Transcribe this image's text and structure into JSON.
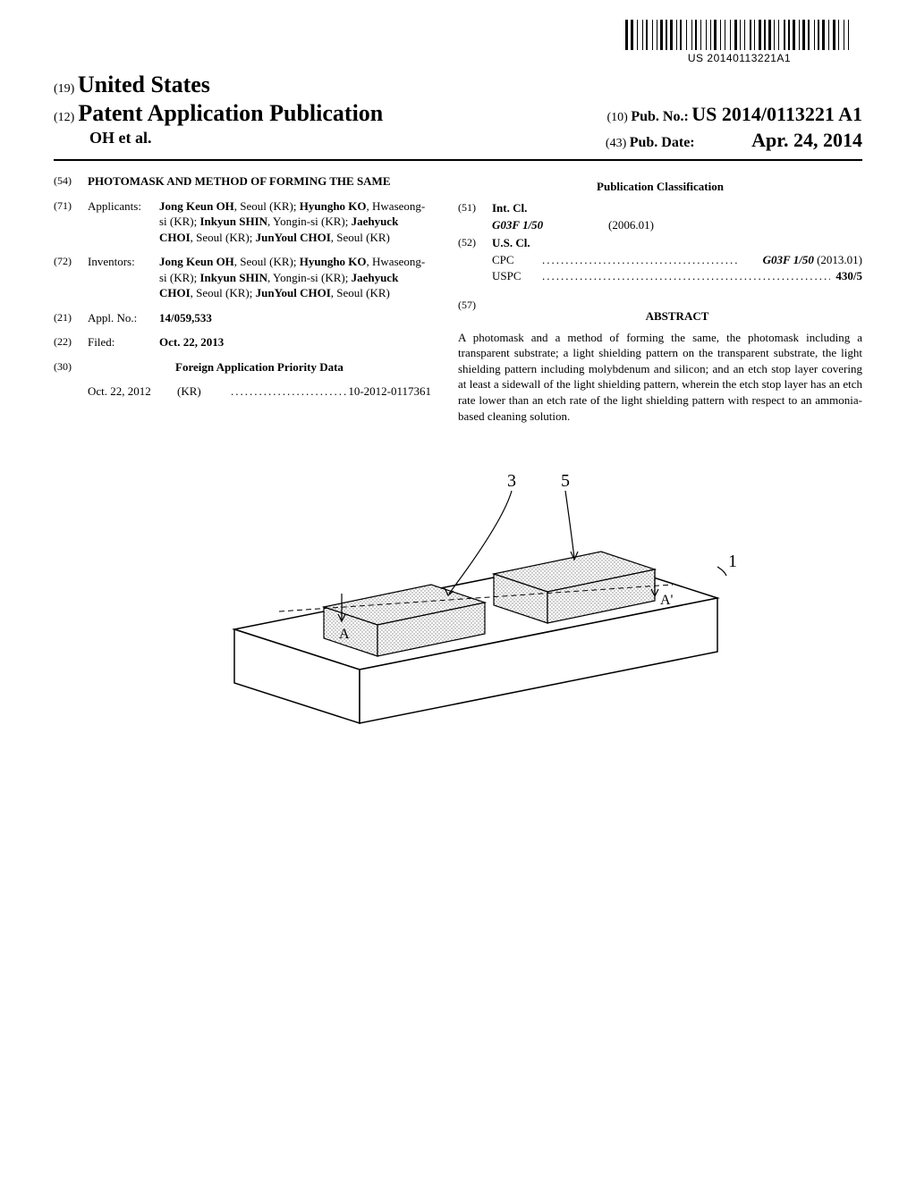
{
  "barcode": {
    "text": "US 20140113221A1",
    "bar_widths": [
      3,
      1,
      3,
      2,
      1,
      3,
      1,
      1,
      2,
      3,
      1,
      2,
      1,
      1,
      3,
      1,
      2,
      1,
      3,
      2,
      1,
      1,
      2,
      3,
      1,
      3,
      1,
      1,
      2,
      2,
      1,
      3,
      1,
      2,
      1,
      1,
      3,
      2,
      1,
      2,
      1,
      3,
      1,
      2,
      3,
      1,
      1,
      2,
      1,
      3,
      2,
      1,
      1,
      2,
      3,
      1,
      2,
      1,
      3,
      1,
      1,
      2,
      1,
      3,
      2,
      1,
      2,
      1,
      3,
      2,
      1,
      1,
      3,
      1,
      2,
      3,
      1,
      1,
      2,
      1,
      3,
      2,
      1,
      2,
      3,
      1,
      1,
      3,
      1,
      2,
      1,
      3
    ]
  },
  "header": {
    "line1_num": "(19)",
    "line1_text": "United States",
    "line2_num": "(12)",
    "line2_text": "Patent Application Publication",
    "line2_pubno_num": "(10)",
    "line2_pubno_label": "Pub. No.:",
    "line2_pubno_value": "US 2014/0113221 A1",
    "line3_left": "OH et al.",
    "line3_pubdate_num": "(43)",
    "line3_pubdate_label": "Pub. Date:",
    "line3_pubdate_value": "Apr. 24, 2014"
  },
  "left_col": {
    "title_num": "(54)",
    "title_text": "PHOTOMASK AND METHOD OF FORMING THE SAME",
    "applicants_num": "(71)",
    "applicants_label": "Applicants:",
    "applicants_text": "Jong Keun OH, Seoul (KR); Hyungho KO, Hwaseong-si (KR); Inkyun SHIN, Yongin-si (KR); Jaehyuck CHOI, Seoul (KR); JunYoul CHOI, Seoul (KR)",
    "inventors_num": "(72)",
    "inventors_label": "Inventors:",
    "inventors_text": "Jong Keun OH, Seoul (KR); Hyungho KO, Hwaseong-si (KR); Inkyun SHIN, Yongin-si (KR); Jaehyuck CHOI, Seoul (KR); JunYoul CHOI, Seoul (KR)",
    "applno_num": "(21)",
    "applno_label": "Appl. No.:",
    "applno_value": "14/059,533",
    "filed_num": "(22)",
    "filed_label": "Filed:",
    "filed_value": "Oct. 22, 2013",
    "priority_num": "(30)",
    "priority_heading": "Foreign Application Priority Data",
    "priority_date": "Oct. 22, 2012",
    "priority_country": "(KR)",
    "priority_value": "10-2012-0117361"
  },
  "right_col": {
    "classification_heading": "Publication Classification",
    "intcl_num": "(51)",
    "intcl_label": "Int. Cl.",
    "intcl_code": "G03F 1/50",
    "intcl_year": "(2006.01)",
    "uscl_num": "(52)",
    "uscl_label": "U.S. Cl.",
    "cpc_label": "CPC",
    "cpc_value": "G03F 1/50 (2013.01)",
    "uspc_label": "USPC",
    "uspc_value": "430/5",
    "abstract_num": "(57)",
    "abstract_label": "ABSTRACT",
    "abstract_text": "A photomask and a method of forming the same, the photomask including a transparent substrate; a light shielding pattern on the transparent substrate, the light shielding pattern including molybdenum and silicon; and an etch stop layer covering at least a sidewall of the light shielding pattern, wherein the etch stop layer has an etch rate lower than an etch rate of the light shielding pattern with respect to an ammonia-based cleaning solution."
  },
  "figure": {
    "labels": {
      "top_left": "3",
      "top_right": "5",
      "substrate": "1",
      "A": "A",
      "Aprime": "A'"
    },
    "colors": {
      "stroke": "#000000",
      "fill_pattern": "#b8b8b8",
      "bg": "#ffffff"
    }
  }
}
